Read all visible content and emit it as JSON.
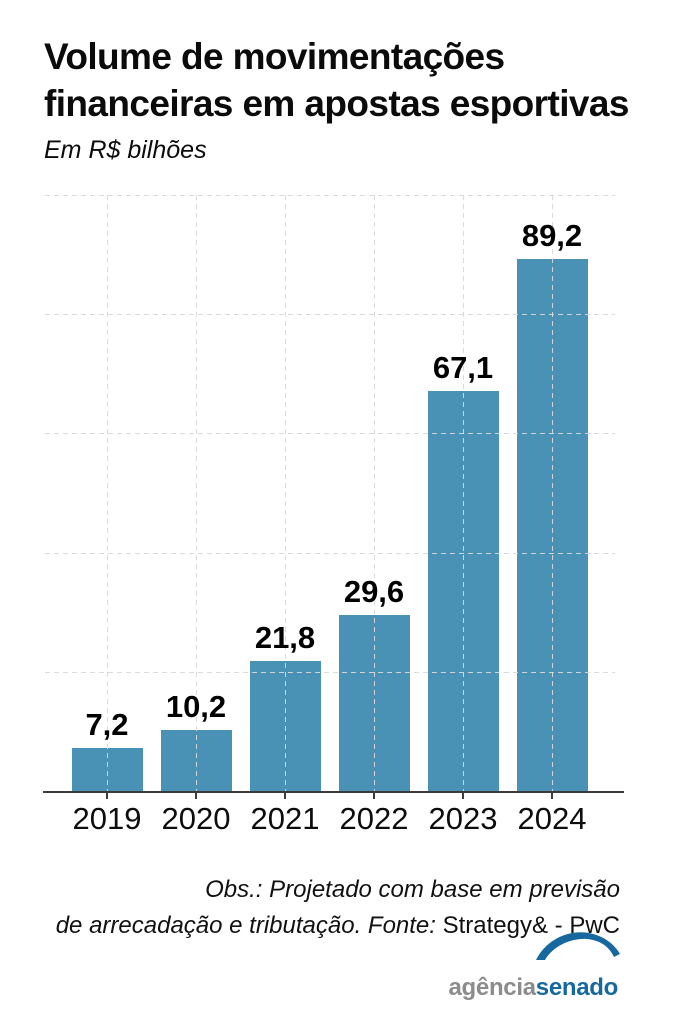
{
  "header": {
    "title_line1": "Volume de movimentações",
    "title_line2": "financeiras em apostas esportivas",
    "subtitle": "Em R$ bilhões"
  },
  "chart_data": {
    "type": "bar",
    "title": "Volume de movimentações financeiras em apostas esportivas",
    "subtitle": "Em R$ bilhões",
    "categories": [
      "2019",
      "2020",
      "2021",
      "2022",
      "2023",
      "2024"
    ],
    "values": [
      7.2,
      10.2,
      21.8,
      29.6,
      67.1,
      89.2
    ],
    "value_labels": [
      "7,2",
      "10,2",
      "21,8",
      "29,6",
      "67,1",
      "89,2"
    ],
    "xlabel": "",
    "ylabel": "",
    "ylim": [
      0,
      100
    ],
    "gridline_step": 20,
    "grid": "dashed horizontal lines every 20 units and dashed vertical lines at bar centers, no y-axis tick labels",
    "legend_position": "none",
    "bar_color": "#4a92b5"
  },
  "footer": {
    "note_line1": "Obs.: Projetado com base em previsão",
    "note_line2_italic": "de arrecadação e tributação. Fonte: ",
    "note_line2_regular": "Strategy& - PwC"
  },
  "logo": {
    "part1": "agência",
    "part2": "senado",
    "part1_color": "#8c8c8c",
    "part2_color": "#17689f"
  },
  "colors": {
    "background": "#ffffff",
    "bar": "#4a92b5",
    "gridline": "#d8d8d8",
    "axis": "#3b3b3b",
    "text": "#0d0d0d",
    "logo_gray": "#8c8c8c",
    "logo_blue": "#17689f"
  }
}
